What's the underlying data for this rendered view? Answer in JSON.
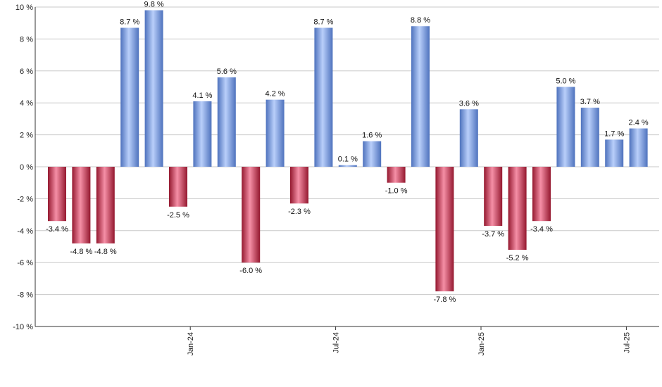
{
  "colors": {
    "positive_light": "#b9cffa",
    "positive_mid": "#86a8ea",
    "positive_dark": "#4e72bd",
    "negative_light": "#f58fa6",
    "negative_mid": "#d7435f",
    "negative_dark": "#94182f",
    "grid": "#c8c8c8"
  },
  "chart_data": {
    "type": "bar",
    "title": "",
    "xlabel": "",
    "ylabel": "",
    "ylim": [
      -10,
      10
    ],
    "y_ticks": [
      10,
      8,
      6,
      4,
      2,
      0,
      -2,
      -4,
      -6,
      -8,
      -10
    ],
    "y_tick_labels": [
      "10 %",
      "8 %",
      "6 %",
      "4 %",
      "2 %",
      "0 %",
      "-2 %",
      "-4 %",
      "-6 %",
      "-8 %",
      "-10 %"
    ],
    "grid": true,
    "x_ticks": [
      {
        "index": 5.5,
        "label": "Jan-24"
      },
      {
        "index": 11.5,
        "label": "Jul-24"
      },
      {
        "index": 17.5,
        "label": "Jan-25"
      },
      {
        "index": 23.5,
        "label": "Jul-25"
      }
    ],
    "values": [
      -3.4,
      -4.8,
      -4.8,
      8.7,
      9.8,
      -2.5,
      4.1,
      5.6,
      -6.0,
      4.2,
      -2.3,
      8.7,
      0.1,
      1.6,
      -1.0,
      8.8,
      -7.8,
      3.6,
      -3.7,
      -5.2,
      -3.4,
      5.0,
      3.7,
      1.7,
      2.4
    ],
    "labels": [
      "-3.4 %",
      "-4.8 %",
      "-4.8 %",
      "8.7 %",
      "9.8 %",
      "-2.5 %",
      "4.1 %",
      "5.6 %",
      "-6.0 %",
      "4.2 %",
      "-2.3 %",
      "8.7 %",
      "0.1 %",
      "1.6 %",
      "-1.0 %",
      "8.8 %",
      "-7.8 %",
      "3.6 %",
      "-3.7 %",
      "-5.2 %",
      "-3.4 %",
      "5.0 %",
      "3.7 %",
      "1.7 %",
      "2.4 %"
    ]
  }
}
